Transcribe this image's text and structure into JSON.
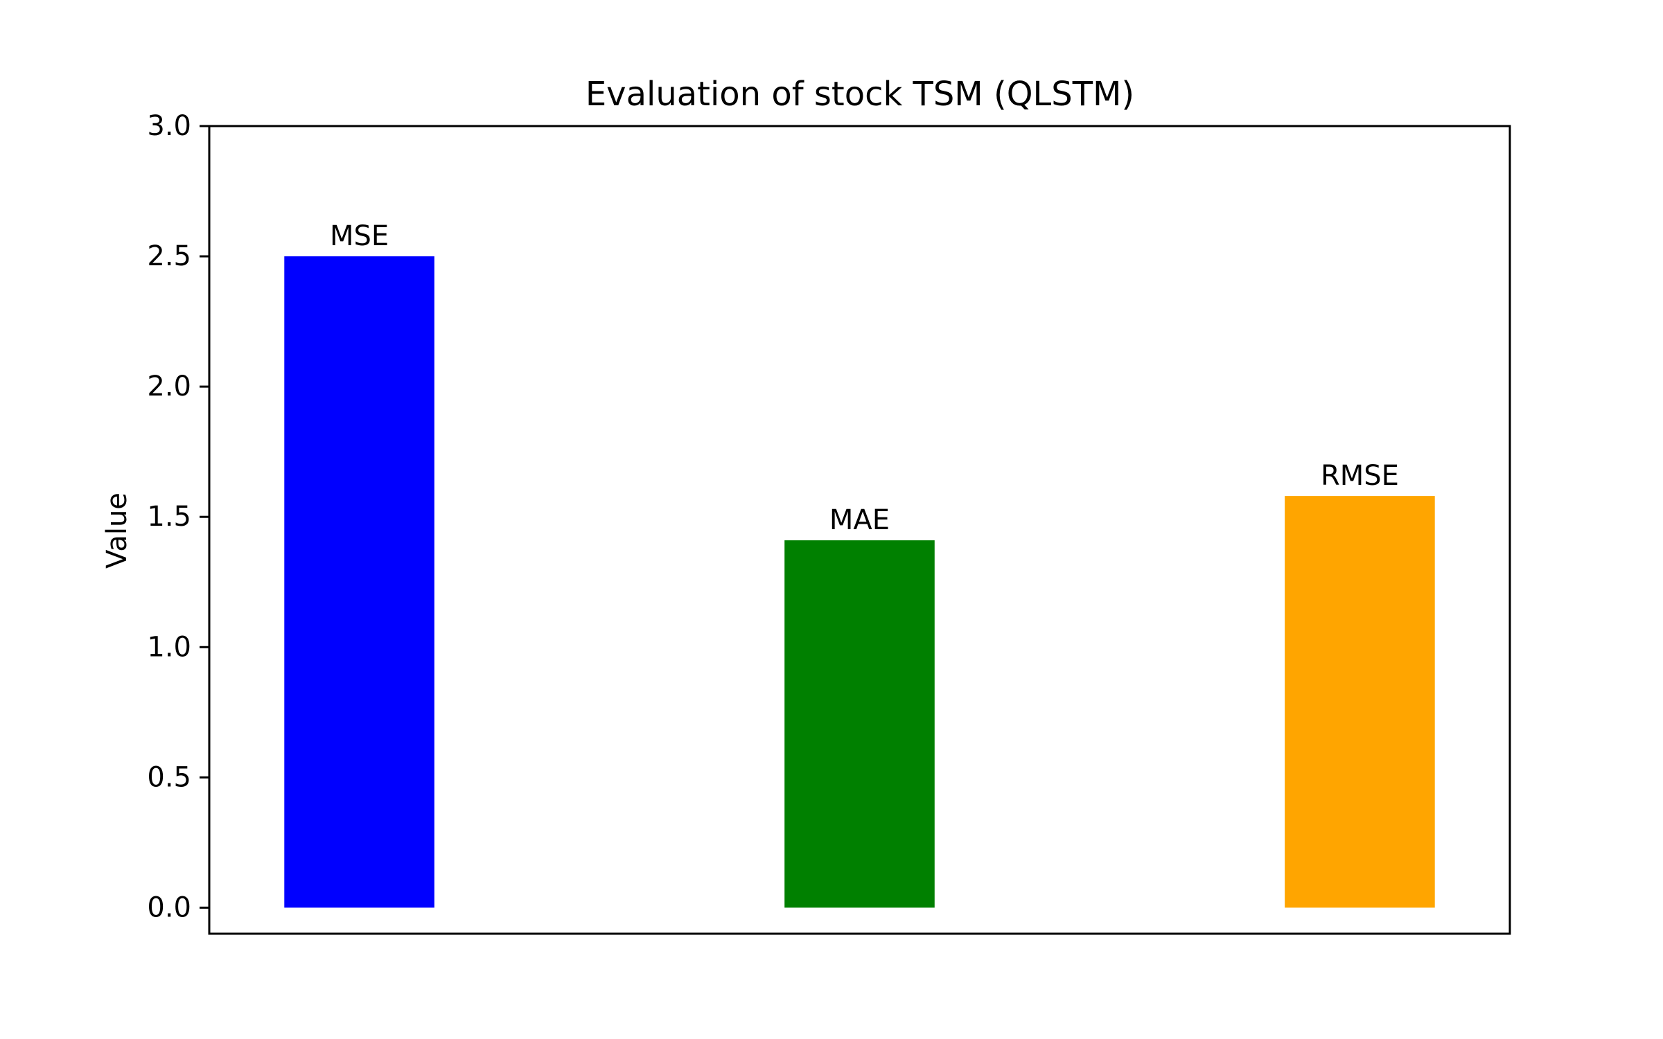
{
  "chart_data": {
    "type": "bar",
    "title": "Evaluation of stock TSM (QLSTM)",
    "xlabel": "",
    "ylabel": "Value",
    "ylim": [
      -0.1,
      3.0
    ],
    "yticks": [
      0.0,
      0.5,
      1.0,
      1.5,
      2.0,
      2.5,
      3.0
    ],
    "ytick_labels": [
      "0.0",
      "0.5",
      "1.0",
      "1.5",
      "2.0",
      "2.5",
      "3.0"
    ],
    "categories": [
      "MSE",
      "MAE",
      "RMSE"
    ],
    "values": [
      2.5,
      1.41,
      1.58
    ],
    "colors": [
      "#0000ff",
      "#008000",
      "#ffa500"
    ],
    "bar_labels": [
      "MSE",
      "MAE",
      "RMSE"
    ],
    "grid": false,
    "legend": "none",
    "show_xticks": false
  }
}
